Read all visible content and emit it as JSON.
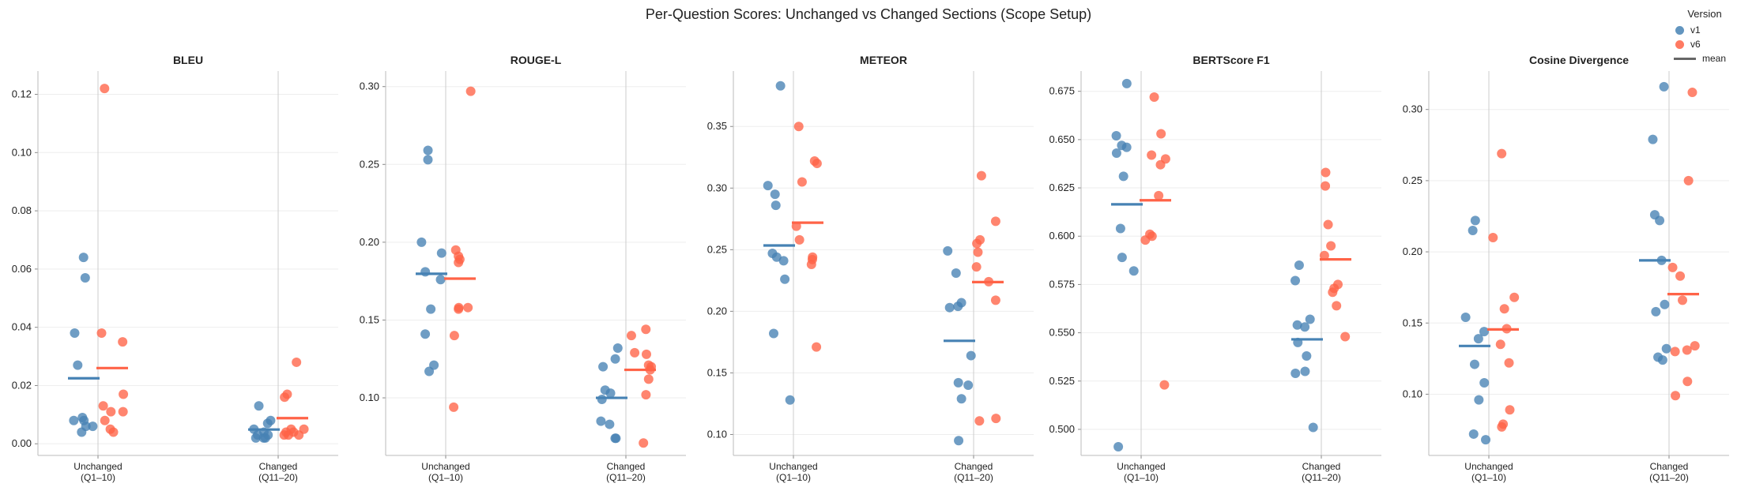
{
  "title": "Per-Question Scores: Unchanged vs Changed Sections  (Scope Setup)",
  "legend": {
    "title": "Version",
    "items": [
      {
        "label": "v1",
        "color": "#4682b4"
      },
      {
        "label": "v6",
        "color": "#ff6347"
      },
      {
        "label": "mean",
        "color": "#666666"
      }
    ]
  },
  "colors": {
    "v1": "#4682b4",
    "v6": "#ff6347",
    "axis": "#bbbbbb",
    "grid": "#eeeeee"
  },
  "chart_data": [
    {
      "type": "scatter",
      "title": "BLEU",
      "categories": [
        "Unchanged\n(Q1–10)",
        "Changed\n(Q11–20)"
      ],
      "ylim": [
        -0.004,
        0.128
      ],
      "yticks": [
        0.0,
        0.02,
        0.04,
        0.06,
        0.08,
        0.1,
        0.12
      ],
      "yfmt": 2,
      "grid": true,
      "series": [
        {
          "name": "v1",
          "groups": [
            [
              0.064,
              0.057,
              0.038,
              0.027,
              0.009,
              0.008,
              0.008,
              0.006,
              0.006,
              0.004
            ],
            [
              0.013,
              0.008,
              0.007,
              0.005,
              0.004,
              0.003,
              0.003,
              0.002,
              0.002,
              0.002
            ]
          ],
          "means": [
            0.0225,
            0.0049
          ]
        },
        {
          "name": "v6",
          "groups": [
            [
              0.122,
              0.038,
              0.035,
              0.017,
              0.013,
              0.011,
              0.011,
              0.008,
              0.005,
              0.004
            ],
            [
              0.028,
              0.017,
              0.016,
              0.005,
              0.005,
              0.004,
              0.004,
              0.003,
              0.003,
              0.003
            ]
          ],
          "means": [
            0.026,
            0.0088
          ]
        }
      ]
    },
    {
      "type": "scatter",
      "title": "ROUGE-L",
      "categories": [
        "Unchanged\n(Q1–10)",
        "Changed\n(Q11–20)"
      ],
      "ylim": [
        0.063,
        0.31
      ],
      "yticks": [
        0.1,
        0.15,
        0.2,
        0.25,
        0.3
      ],
      "yfmt": 2,
      "grid": true,
      "series": [
        {
          "name": "v1",
          "groups": [
            [
              0.259,
              0.253,
              0.2,
              0.193,
              0.181,
              0.176,
              0.157,
              0.141,
              0.121,
              0.117
            ],
            [
              0.132,
              0.125,
              0.12,
              0.105,
              0.103,
              0.099,
              0.085,
              0.083,
              0.074,
              0.074
            ]
          ],
          "means": [
            0.1797,
            0.1
          ]
        },
        {
          "name": "v6",
          "groups": [
            [
              0.297,
              0.195,
              0.191,
              0.189,
              0.187,
              0.158,
              0.158,
              0.157,
              0.14,
              0.094
            ],
            [
              0.144,
              0.14,
              0.129,
              0.128,
              0.121,
              0.12,
              0.118,
              0.112,
              0.102,
              0.071
            ]
          ],
          "means": [
            0.1766,
            0.118
          ]
        }
      ]
    },
    {
      "type": "scatter",
      "title": "METEOR",
      "categories": [
        "Unchanged\n(Q1–10)",
        "Changed\n(Q11–20)"
      ],
      "ylim": [
        0.083,
        0.395
      ],
      "yticks": [
        0.1,
        0.15,
        0.2,
        0.25,
        0.3,
        0.35
      ],
      "yfmt": 2,
      "grid": true,
      "series": [
        {
          "name": "v1",
          "groups": [
            [
              0.383,
              0.302,
              0.295,
              0.286,
              0.247,
              0.244,
              0.241,
              0.226,
              0.182,
              0.128
            ],
            [
              0.249,
              0.231,
              0.207,
              0.204,
              0.203,
              0.164,
              0.142,
              0.14,
              0.129,
              0.095
            ]
          ],
          "means": [
            0.2534,
            0.176
          ]
        },
        {
          "name": "v6",
          "groups": [
            [
              0.35,
              0.322,
              0.32,
              0.305,
              0.269,
              0.258,
              0.244,
              0.242,
              0.238,
              0.171
            ],
            [
              0.31,
              0.273,
              0.258,
              0.255,
              0.248,
              0.236,
              0.224,
              0.209,
              0.113,
              0.111
            ]
          ],
          "means": [
            0.2719,
            0.2237
          ]
        }
      ]
    },
    {
      "type": "scatter",
      "title": "BERTScore F1",
      "categories": [
        "Unchanged\n(Q1–10)",
        "Changed\n(Q11–20)"
      ],
      "ylim": [
        0.4865,
        0.6855
      ],
      "yticks": [
        0.5,
        0.525,
        0.55,
        0.575,
        0.6,
        0.625,
        0.65,
        0.675
      ],
      "yfmt": 3,
      "grid": true,
      "series": [
        {
          "name": "v1",
          "groups": [
            [
              0.679,
              0.652,
              0.647,
              0.646,
              0.643,
              0.631,
              0.604,
              0.589,
              0.582,
              0.491
            ],
            [
              0.585,
              0.577,
              0.557,
              0.554,
              0.553,
              0.545,
              0.538,
              0.53,
              0.529,
              0.501
            ]
          ],
          "means": [
            0.6165,
            0.5466
          ]
        },
        {
          "name": "v6",
          "groups": [
            [
              0.672,
              0.653,
              0.642,
              0.64,
              0.637,
              0.621,
              0.601,
              0.6,
              0.598,
              0.523
            ],
            [
              0.633,
              0.626,
              0.606,
              0.595,
              0.59,
              0.575,
              0.573,
              0.571,
              0.564,
              0.548
            ]
          ],
          "means": [
            0.6186,
            0.588
          ]
        }
      ]
    },
    {
      "type": "scatter",
      "title": "Cosine Divergence",
      "categories": [
        "Unchanged\n(Q1–10)",
        "Changed\n(Q11–20)"
      ],
      "ylim": [
        0.057,
        0.327
      ],
      "yticks": [
        0.1,
        0.15,
        0.2,
        0.25,
        0.3
      ],
      "yfmt": 2,
      "grid": true,
      "series": [
        {
          "name": "v1",
          "groups": [
            [
              0.222,
              0.215,
              0.154,
              0.144,
              0.139,
              0.121,
              0.108,
              0.096,
              0.072,
              0.068
            ],
            [
              0.316,
              0.279,
              0.226,
              0.222,
              0.194,
              0.163,
              0.158,
              0.132,
              0.126,
              0.124
            ]
          ],
          "means": [
            0.1339,
            0.194
          ]
        },
        {
          "name": "v6",
          "groups": [
            [
              0.269,
              0.21,
              0.168,
              0.16,
              0.146,
              0.135,
              0.122,
              0.089,
              0.079,
              0.077
            ],
            [
              0.312,
              0.25,
              0.189,
              0.183,
              0.166,
              0.134,
              0.131,
              0.13,
              0.109,
              0.099
            ]
          ],
          "means": [
            0.1455,
            0.1703
          ]
        }
      ]
    }
  ]
}
